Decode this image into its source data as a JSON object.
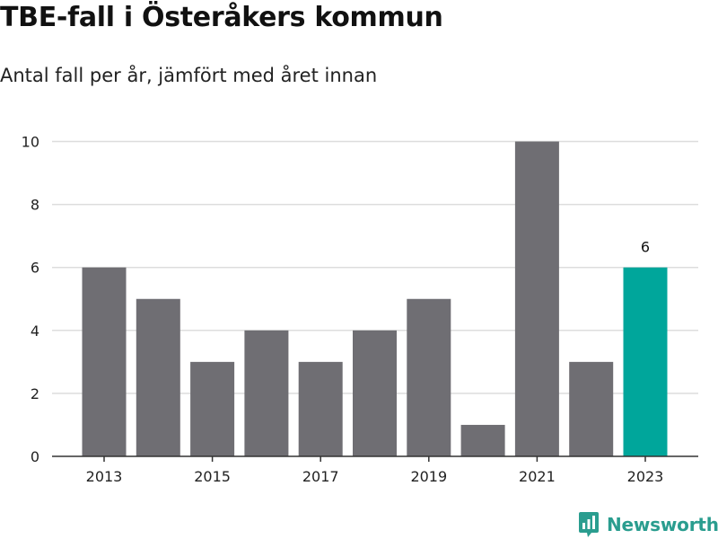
{
  "chart_data": {
    "type": "bar",
    "title": "TBE-fall i Österåkers kommun",
    "subtitle": "Antal fall per år, jämfört med året innan",
    "categories": [
      "2013",
      "2014",
      "2015",
      "2016",
      "2017",
      "2018",
      "2019",
      "2020",
      "2021",
      "2022",
      "2023"
    ],
    "x_tick_labels": [
      "2013",
      "2015",
      "2017",
      "2019",
      "2021",
      "2023"
    ],
    "values": [
      6,
      5,
      3,
      4,
      3,
      4,
      5,
      1,
      10,
      3,
      6
    ],
    "highlight_index": 10,
    "highlight_label": "6",
    "ylim": [
      0,
      10.5
    ],
    "y_ticks": [
      0,
      2,
      4,
      6,
      8,
      10
    ],
    "grid": true,
    "colors": {
      "bar": "#6f6e73",
      "highlight": "#00a69b",
      "grid": "#dddddd",
      "axis": "#333333"
    }
  },
  "brand": {
    "name": "Newsworthy",
    "color": "#2a9d8f"
  }
}
